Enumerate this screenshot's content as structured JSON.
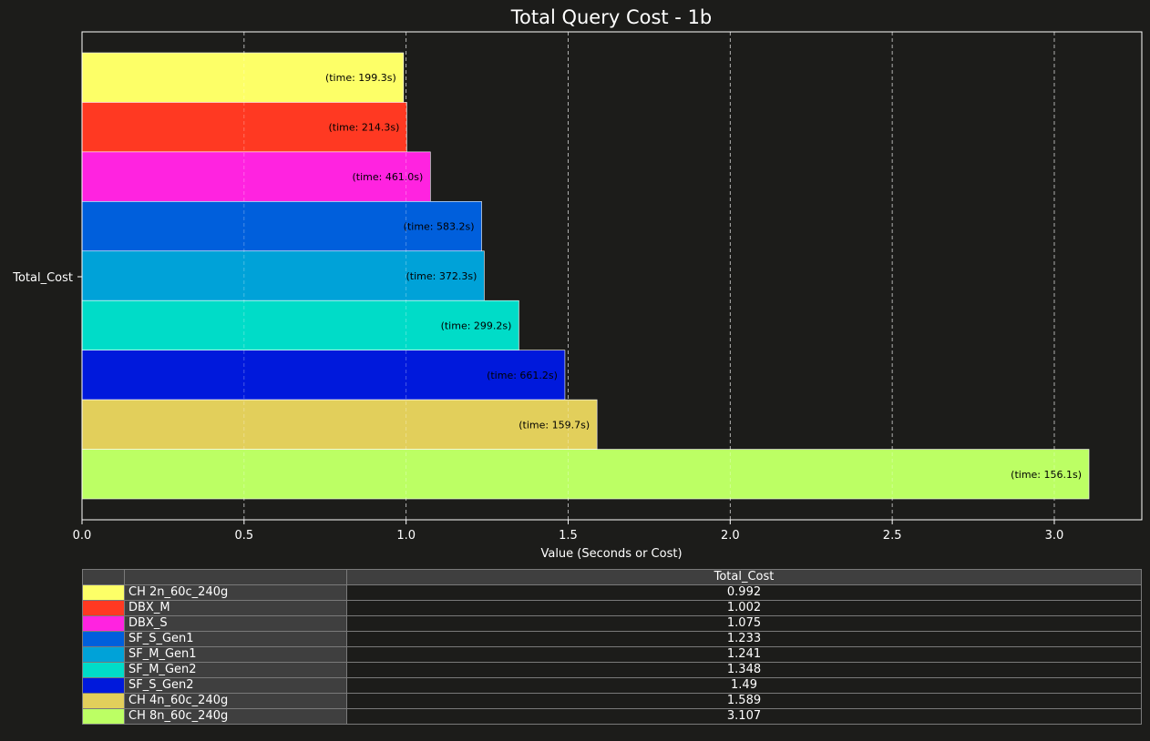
{
  "chart_data": {
    "type": "bar",
    "orientation": "horizontal",
    "title": "Total Query Cost - 1b",
    "xlabel": "Value (Seconds or Cost)",
    "ylabel": "",
    "category": "Total_Cost",
    "xlim": [
      0,
      3.27
    ],
    "xticks": [
      "0.0",
      "0.5",
      "1.0",
      "1.5",
      "2.0",
      "2.5",
      "3.0"
    ],
    "grid": "x-dashed",
    "series": [
      {
        "name": "CH 2n_60c_240g",
        "value": 0.992,
        "value_text": "0.992",
        "time_label": "(time: 199.3s)",
        "color": "#fdff67"
      },
      {
        "name": "DBX_M",
        "value": 1.002,
        "value_text": "1.002",
        "time_label": "(time: 214.3s)",
        "color": "#ff3922"
      },
      {
        "name": "DBX_S",
        "value": 1.075,
        "value_text": "1.075",
        "time_label": "(time: 461.0s)",
        "color": "#ff23e0"
      },
      {
        "name": "SF_S_Gen1",
        "value": 1.233,
        "value_text": "1.233",
        "time_label": "(time: 583.2s)",
        "color": "#005fdc"
      },
      {
        "name": "SF_M_Gen1",
        "value": 1.241,
        "value_text": "1.241",
        "time_label": "(time: 372.3s)",
        "color": "#00a2d8"
      },
      {
        "name": "SF_M_Gen2",
        "value": 1.348,
        "value_text": "1.348",
        "time_label": "(time: 299.2s)",
        "color": "#00dcc8"
      },
      {
        "name": "SF_S_Gen2",
        "value": 1.49,
        "value_text": "1.49",
        "time_label": "(time: 661.2s)",
        "color": "#0019dc"
      },
      {
        "name": "CH 4n_60c_240g",
        "value": 1.589,
        "value_text": "1.589",
        "time_label": "(time: 159.7s)",
        "color": "#e2cf5b"
      },
      {
        "name": "CH 8n_60c_240g",
        "value": 3.107,
        "value_text": "3.107",
        "time_label": "(time: 156.1s)",
        "color": "#bcff64"
      }
    ]
  },
  "table": {
    "header": "Total_Cost"
  }
}
